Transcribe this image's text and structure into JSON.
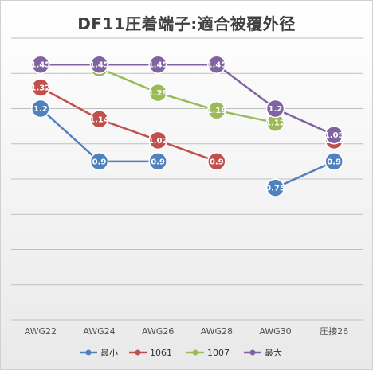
{
  "chart_data": {
    "type": "line",
    "title": "DF11圧着端子:適合被覆外径",
    "categories": [
      "AWG22",
      "AWG24",
      "AWG26",
      "AWG28",
      "AWG30",
      "圧接26"
    ],
    "ylim": [
      0,
      1.6
    ],
    "grid": true,
    "legend_placement": "bottom",
    "series": [
      {
        "name": "最小",
        "color": "#4f81bd",
        "values": [
          1.2,
          0.9,
          0.9,
          null,
          0.75,
          0.9
        ]
      },
      {
        "name": "1061",
        "color": "#c0504d",
        "values": [
          1.32,
          1.14,
          1.02,
          0.9,
          null,
          1.02
        ]
      },
      {
        "name": "1007",
        "color": "#9bbb59",
        "values": [
          null,
          1.43,
          1.29,
          1.19,
          1.12,
          null
        ]
      },
      {
        "name": "最大",
        "color": "#8064a2",
        "values": [
          1.45,
          1.45,
          1.45,
          1.45,
          1.2,
          1.05
        ]
      }
    ]
  }
}
